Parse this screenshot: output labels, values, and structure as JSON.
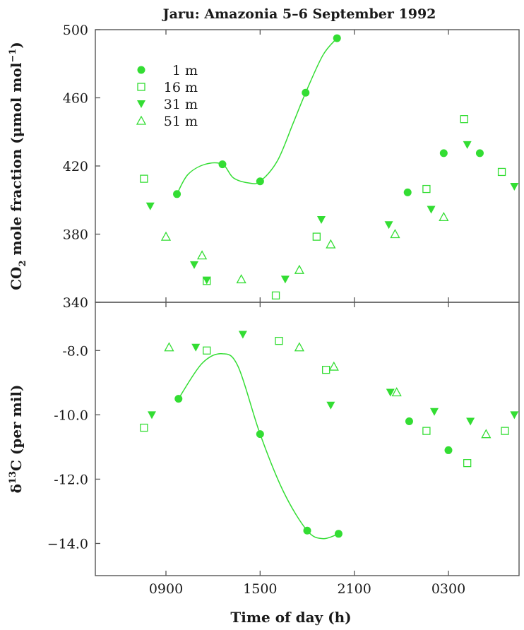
{
  "chart_data": {
    "type": "scatter",
    "title": "Jaru: Amazonia 5–6 September 1992",
    "xlabel": "Time of day (h)",
    "color": "#33dd33",
    "x_ticks": [
      {
        "value": 9,
        "label": "0900"
      },
      {
        "value": 15,
        "label": "1500"
      },
      {
        "value": 21,
        "label": "2100"
      },
      {
        "value": 27,
        "label": "0300"
      }
    ],
    "xlim": [
      4.5,
      31.5
    ],
    "legend": {
      "placement": "top-left",
      "entries": [
        {
          "label": "1 m",
          "marker": "filled-circle"
        },
        {
          "label": "16 m",
          "marker": "open-square"
        },
        {
          "label": "31 m",
          "marker": "filled-triangle-down"
        },
        {
          "label": "51 m",
          "marker": "open-triangle-up"
        }
      ]
    },
    "panels": [
      {
        "id": "co2",
        "ylabel_parts": {
          "a": "CO",
          "sub": "2",
          "b": " mole fraction (μmol mol",
          "sup": "−1",
          "c": ")"
        },
        "ylim": [
          340,
          500
        ],
        "y_ticks": [
          {
            "value": 340,
            "label": "340"
          },
          {
            "value": 380,
            "label": "380"
          },
          {
            "value": 420,
            "label": "420"
          },
          {
            "value": 460,
            "label": "460"
          },
          {
            "value": 500,
            "label": "500"
          }
        ],
        "series": [
          {
            "marker": "filled-circle",
            "fit_curve": true,
            "points": [
              [
                9.7,
                403.5
              ],
              [
                12.6,
                421
              ],
              [
                15.0,
                411
              ],
              [
                17.9,
                463
              ],
              [
                19.9,
                495
              ],
              [
                24.4,
                404.5
              ],
              [
                26.7,
                427.5
              ],
              [
                29.0,
                427.5
              ]
            ]
          },
          {
            "marker": "open-square",
            "points": [
              [
                7.6,
                412.5
              ],
              [
                11.6,
                352.5
              ],
              [
                16.0,
                344
              ],
              [
                18.6,
                378.5
              ],
              [
                25.6,
                406.5
              ],
              [
                28.0,
                447.5
              ],
              [
                30.4,
                416.5
              ]
            ]
          },
          {
            "marker": "filled-triangle-down",
            "points": [
              [
                8.0,
                396.5
              ],
              [
                10.8,
                362
              ],
              [
                11.6,
                353
              ],
              [
                16.6,
                353.5
              ],
              [
                18.9,
                388.5
              ],
              [
                23.2,
                385.5
              ],
              [
                25.9,
                394.5
              ],
              [
                28.2,
                432.5
              ],
              [
                31.2,
                408
              ]
            ]
          },
          {
            "marker": "open-triangle-up",
            "points": [
              [
                9.0,
                378.5
              ],
              [
                11.3,
                367.5
              ],
              [
                13.8,
                353.5
              ],
              [
                17.5,
                359
              ],
              [
                19.5,
                374
              ],
              [
                23.6,
                380
              ],
              [
                26.7,
                390
              ]
            ]
          }
        ],
        "fit_curve_points": [
          [
            9.7,
            403.5
          ],
          [
            10.4,
            415
          ],
          [
            11.5,
            421
          ],
          [
            12.6,
            421
          ],
          [
            13.3,
            413
          ],
          [
            14.3,
            410
          ],
          [
            15.0,
            411
          ],
          [
            16.1,
            423
          ],
          [
            17.1,
            445
          ],
          [
            17.9,
            463
          ],
          [
            19.0,
            485
          ],
          [
            19.9,
            495
          ]
        ]
      },
      {
        "id": "d13c",
        "ylabel_parts": {
          "a": "δ",
          "sup": "13",
          "b": "C (per mil)"
        },
        "ylim": [
          -15.0,
          -6.5
        ],
        "y_ticks": [
          {
            "value": -8.0,
            "label": "-8.0"
          },
          {
            "value": -10.0,
            "label": "-10.0"
          },
          {
            "value": -12.0,
            "label": "-12.0"
          },
          {
            "value": -14.0,
            "label": "−14.0"
          }
        ],
        "series": [
          {
            "marker": "filled-circle",
            "fit_curve": true,
            "points": [
              [
                9.8,
                -9.5
              ],
              [
                15.0,
                -10.6
              ],
              [
                18.0,
                -13.6
              ],
              [
                20.0,
                -13.7
              ],
              [
                24.5,
                -10.2
              ],
              [
                27.0,
                -11.1
              ],
              [
                28.3,
                null
              ]
            ]
          },
          {
            "marker": "open-square",
            "points": [
              [
                7.6,
                -10.4
              ],
              [
                11.6,
                -8.0
              ],
              [
                16.2,
                -7.7
              ],
              [
                19.2,
                -8.6
              ],
              [
                25.6,
                -10.5
              ],
              [
                28.2,
                -11.5
              ],
              [
                30.6,
                -10.5
              ]
            ]
          },
          {
            "marker": "filled-triangle-down",
            "points": [
              [
                8.1,
                -10.0
              ],
              [
                10.9,
                -7.9
              ],
              [
                13.9,
                -7.5
              ],
              [
                19.5,
                -9.7
              ],
              [
                23.3,
                -9.3
              ],
              [
                26.1,
                -9.9
              ],
              [
                28.4,
                -10.2
              ],
              [
                31.2,
                -10.0
              ]
            ]
          },
          {
            "marker": "open-triangle-up",
            "points": [
              [
                9.2,
                -7.9
              ],
              [
                17.5,
                -7.9
              ],
              [
                19.7,
                -8.5
              ],
              [
                23.7,
                -9.3
              ],
              [
                29.4,
                -10.6
              ]
            ]
          }
        ],
        "fit_curve_points": [
          [
            9.8,
            -9.5
          ],
          [
            11.3,
            -8.4
          ],
          [
            12.6,
            -8.1
          ],
          [
            13.6,
            -8.5
          ],
          [
            15.0,
            -10.6
          ],
          [
            16.5,
            -12.4
          ],
          [
            18.0,
            -13.6
          ],
          [
            19.0,
            -13.85
          ],
          [
            20.0,
            -13.7
          ]
        ]
      }
    ]
  }
}
